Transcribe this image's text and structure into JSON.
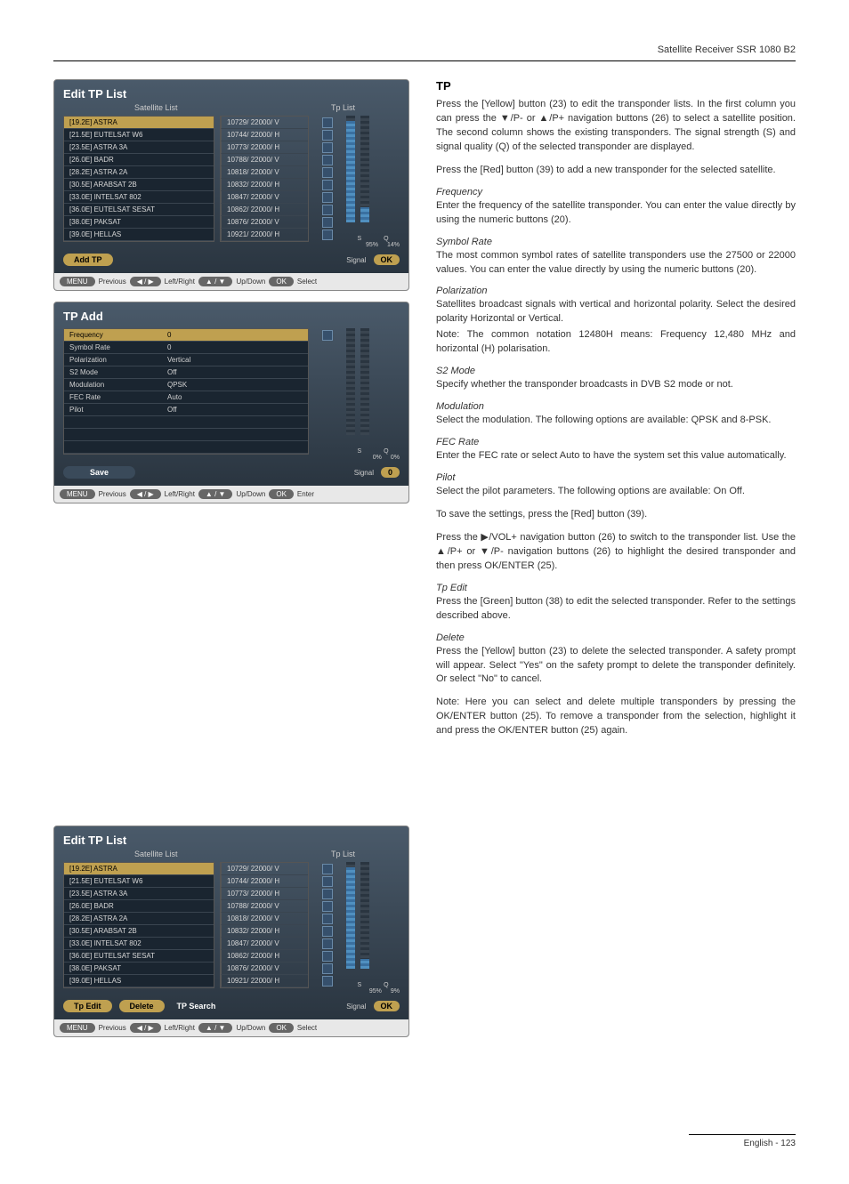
{
  "header": "Satellite Receiver SSR 1080 B2",
  "footer": "English - 123",
  "screenshots": {
    "edit_tp_1": {
      "title": "Edit TP List",
      "col1_label": "Satellite List",
      "col2_label": "Tp List",
      "satellites": [
        {
          "name": "[19.2E] ASTRA",
          "tp": "10729/ 22000/ V",
          "selected": true
        },
        {
          "name": "[21.5E] EUTELSAT W6",
          "tp": "10744/ 22000/ H"
        },
        {
          "name": "[23.5E] ASTRA 3A",
          "tp": "10773/ 22000/ H"
        },
        {
          "name": "[26.0E] BADR",
          "tp": "10788/ 22000/ V"
        },
        {
          "name": "[28.2E] ASTRA 2A",
          "tp": "10818/ 22000/ V"
        },
        {
          "name": "[30.5E] ARABSAT 2B",
          "tp": "10832/ 22000/ H"
        },
        {
          "name": "[33.0E] INTELSAT 802",
          "tp": "10847/ 22000/ V"
        },
        {
          "name": "[36.0E] EUTELSAT SESAT",
          "tp": "10862/ 22000/ H"
        },
        {
          "name": "[38.0E] PAKSAT",
          "tp": "10876/ 22000/ V"
        },
        {
          "name": "[39.0E] HELLAS",
          "tp": "10921/ 22000/ H"
        }
      ],
      "sq": {
        "s_label": "S",
        "q_label": "Q",
        "s_val": "95%",
        "q_val": "14%"
      },
      "signal_label": "Signal",
      "ok_label": "OK",
      "action": "Add TP",
      "nav": {
        "menu": "MENU",
        "prev": "Previous",
        "lr": "Left/Right",
        "ud": "Up/Down",
        "ok": "OK",
        "sel": "Select"
      }
    },
    "tp_add": {
      "title": "TP Add",
      "rows": [
        {
          "lbl": "Frequency",
          "val": "0",
          "sel": true
        },
        {
          "lbl": "Symbol Rate",
          "val": "0"
        },
        {
          "lbl": "Polarization",
          "val": "Vertical"
        },
        {
          "lbl": "S2 Mode",
          "val": "Off"
        },
        {
          "lbl": "Modulation",
          "val": "QPSK"
        },
        {
          "lbl": "FEC Rate",
          "val": "Auto"
        },
        {
          "lbl": "Pilot",
          "val": "Off"
        }
      ],
      "sq": {
        "s_label": "S",
        "q_label": "Q",
        "s_val": "0%",
        "q_val": "0%"
      },
      "signal_label": "Signal",
      "signal_val": "0",
      "save": "Save",
      "nav": {
        "menu": "MENU",
        "prev": "Previous",
        "lr": "Left/Right",
        "ud": "Up/Down",
        "ok": "OK",
        "sel": "Enter"
      }
    },
    "edit_tp_2": {
      "title": "Edit TP List",
      "col1_label": "Satellite List",
      "col2_label": "Tp List",
      "satellites": [
        {
          "name": "[19.2E] ASTRA",
          "tp": "10729/ 22000/ V",
          "selected": true
        },
        {
          "name": "[21.5E] EUTELSAT W6",
          "tp": "10744/ 22000/ H"
        },
        {
          "name": "[23.5E] ASTRA 3A",
          "tp": "10773/ 22000/ H"
        },
        {
          "name": "[26.0E] BADR",
          "tp": "10788/ 22000/ V"
        },
        {
          "name": "[28.2E] ASTRA 2A",
          "tp": "10818/ 22000/ V"
        },
        {
          "name": "[30.5E] ARABSAT 2B",
          "tp": "10832/ 22000/ H"
        },
        {
          "name": "[33.0E] INTELSAT 802",
          "tp": "10847/ 22000/ V"
        },
        {
          "name": "[36.0E] EUTELSAT SESAT",
          "tp": "10862/ 22000/ H"
        },
        {
          "name": "[38.0E] PAKSAT",
          "tp": "10876/ 22000/ V"
        },
        {
          "name": "[39.0E] HELLAS",
          "tp": "10921/ 22000/ H"
        }
      ],
      "sq": {
        "s_label": "S",
        "q_label": "Q",
        "s_val": "95%",
        "q_val": "9%"
      },
      "signal_label": "Signal",
      "ok_label": "OK",
      "actions": [
        "Tp Edit",
        "Delete",
        "TP Search"
      ],
      "nav": {
        "menu": "MENU",
        "prev": "Previous",
        "lr": "Left/Right",
        "ud": "Up/Down",
        "ok": "OK",
        "sel": "Select"
      }
    }
  },
  "text": {
    "tp_heading": "TP",
    "p1": "Press the [Yellow] button (23) to edit the transponder lists. In the first column you can press the ▼/P- or ▲/P+ navigation buttons (26) to select a satellite position. The second column shows the existing transponders. The signal strength (S) and signal quality (Q) of the selected transponder are displayed.",
    "p2": "Press the [Red] button (39) to add a new transponder for the selected satellite.",
    "freq_h": "Frequency",
    "freq_p": "Enter the frequency of the satellite transponder. You can enter the value directly by using the numeric buttons (20).",
    "sym_h": "Symbol Rate",
    "sym_p": "The most common symbol rates of satellite transponders use the 27500 or 22000 values. You can enter the value directly by using the numeric buttons (20).",
    "pol_h": "Polarization",
    "pol_p1": "Satellites broadcast signals with vertical and horizontal polarity. Select the desired polarity Horizontal or Vertical.",
    "pol_p2": "Note: The common notation 12480H means: Frequency 12,480 MHz and horizontal (H) polarisation.",
    "s2_h": "S2 Mode",
    "s2_p": "Specify whether the transponder broadcasts in DVB S2 mode or not.",
    "mod_h": "Modulation",
    "mod_p": "Select the modulation. The following options are available: QPSK and 8-PSK.",
    "fec_h": "FEC Rate",
    "fec_p": "Enter the FEC rate or select Auto to have the system set this value automatically.",
    "pilot_h": "Pilot",
    "pilot_p": "Select the pilot parameters. The following options are available: On Off.",
    "save_p": "To save the settings, press the [Red] button (39).",
    "nav_p": "Press the ▶/VOL+ navigation button (26) to switch to the transponder list. Use the ▲/P+ or ▼/P- navigation buttons (26) to highlight the desired transponder and then press OK/ENTER (25).",
    "tpedit_h": "Tp Edit",
    "tpedit_p": "Press the [Green] button (38) to edit the selected transponder. Refer to the settings described above.",
    "del_h": "Delete",
    "del_p": "Press the [Yellow] button (23) to delete the selected transponder. A safety prompt will appear. Select \"Yes\" on the safety prompt to delete the transponder definitely. Or select \"No\" to cancel.",
    "note_p": "Note: Here you can select and delete multiple transponders by pressing the OK/ENTER button (25). To remove a transponder from the selection, highlight it and press the OK/ENTER button (25) again."
  }
}
